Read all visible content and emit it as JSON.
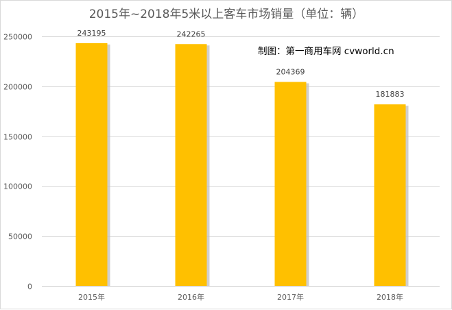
{
  "chart_data": {
    "type": "bar",
    "title": "2015年~2018年5米以上客车市场销量（单位：辆）",
    "annotation": "制图：第一商用车网 cvworld.cn",
    "categories": [
      "2015年",
      "2016年",
      "2017年",
      "2018年"
    ],
    "values": [
      243195,
      242265,
      204369,
      181883
    ],
    "data_labels": [
      "243195",
      "242265",
      "204369",
      "181883"
    ],
    "yticks": [
      0,
      50000,
      100000,
      150000,
      200000,
      250000
    ],
    "ytick_labels": [
      "0",
      "50000",
      "100000",
      "150000",
      "200000",
      "250000"
    ],
    "ylim": [
      0,
      250000
    ],
    "xlabel": "",
    "ylabel": "",
    "grid": true,
    "legend": "none",
    "bar_color": "#FFC000",
    "shadow_color": "#BFBFBF"
  }
}
